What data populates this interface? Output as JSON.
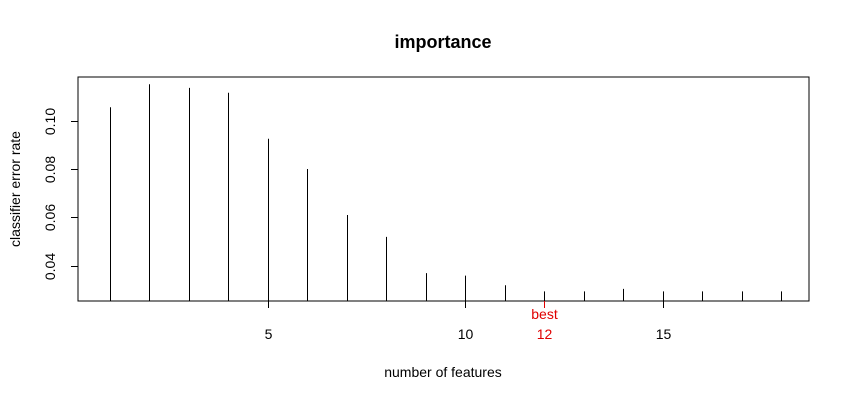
{
  "chart_data": {
    "type": "bar",
    "title": "importance",
    "xlabel": "number of features",
    "ylabel": "classifier error rate",
    "x": [
      1,
      2,
      3,
      4,
      5,
      6,
      7,
      8,
      9,
      10,
      11,
      12,
      13,
      14,
      15,
      16,
      17,
      18
    ],
    "values": [
      0.1055,
      0.115,
      0.1135,
      0.1115,
      0.0925,
      0.08,
      0.061,
      0.052,
      0.037,
      0.036,
      0.032,
      0.0295,
      0.0295,
      0.0305,
      0.0295,
      0.0295,
      0.0295,
      0.0295
    ],
    "xlim": [
      0.2,
      18.7
    ],
    "ylim": [
      0.0255,
      0.118
    ],
    "x_ticks": [
      5,
      10,
      15
    ],
    "y_ticks": [
      0.04,
      0.06,
      0.08,
      0.1
    ],
    "x_tick_labels": [
      "5",
      "10",
      "15"
    ],
    "y_tick_labels": [
      "0.04",
      "0.06",
      "0.08",
      "0.10"
    ],
    "best": {
      "x": 12,
      "label": "best",
      "tick_label": "12",
      "color": "#e00000"
    },
    "grid": false,
    "colors": {
      "bars": "#000000",
      "best": "#e00000"
    }
  }
}
